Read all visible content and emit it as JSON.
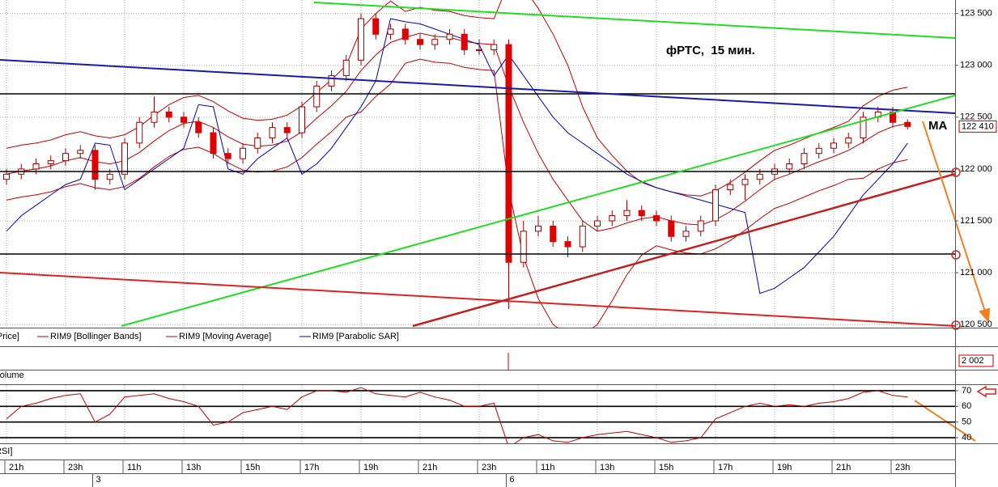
{
  "chart_data": [
    {
      "type": "candlestick",
      "categories": [
        "21h",
        null,
        null,
        null,
        "23h",
        null,
        null,
        null,
        "11h",
        null,
        null,
        null,
        "13h",
        null,
        null,
        null,
        "15h",
        null,
        null,
        null,
        "17h",
        null,
        null,
        null,
        "19h",
        null,
        null,
        null,
        "21h",
        null,
        null,
        null,
        "23h",
        null,
        null,
        null,
        "11h",
        null,
        null,
        null,
        "13h",
        null,
        null,
        null,
        "15h",
        null,
        null,
        null,
        "17h",
        null,
        null,
        null,
        "19h",
        null,
        null,
        null,
        "21h",
        null,
        null,
        null,
        "23h",
        null
      ],
      "day_labels": [
        "3",
        "6"
      ],
      "ylim": [
        120470,
        123630
      ],
      "yticks": [
        {
          "value": 120500,
          "label": "120 500"
        },
        {
          "value": 121000,
          "label": "121 000"
        },
        {
          "value": 121500,
          "label": "121 500"
        },
        {
          "value": 122000,
          "label": "122 000"
        },
        {
          "value": 122500,
          "label": "122 500"
        },
        {
          "value": 123000,
          "label": "123 000"
        },
        {
          "value": 123500,
          "label": "123 500"
        }
      ],
      "grid": true,
      "up_color": "#ffffff",
      "down_color": "#e00000",
      "edge_color": "#a00000",
      "price_label": "Price]",
      "last_value": 122410,
      "last_value_label": "122 410",
      "annotations": [
        "фРТС,  15 мин.",
        "МА"
      ],
      "ohlc": [
        [
          121900,
          122000,
          121850,
          121950
        ],
        [
          121950,
          122050,
          121900,
          122000
        ],
        [
          122000,
          122100,
          121950,
          122050
        ],
        [
          122050,
          122130,
          122000,
          122080
        ],
        [
          122080,
          122200,
          122030,
          122150
        ],
        [
          122150,
          122230,
          122100,
          122180
        ],
        [
          122180,
          122230,
          121800,
          121900
        ],
        [
          121900,
          122000,
          121850,
          121950
        ],
        [
          121950,
          122300,
          121900,
          122250
        ],
        [
          122250,
          122500,
          122200,
          122450
        ],
        [
          122450,
          122700,
          122400,
          122550
        ],
        [
          122550,
          122600,
          122450,
          122500
        ],
        [
          122500,
          122550,
          122400,
          122450
        ],
        [
          122450,
          122500,
          122300,
          122350
        ],
        [
          122350,
          122400,
          122100,
          122150
        ],
        [
          122150,
          122200,
          122050,
          122100
        ],
        [
          122100,
          122250,
          122050,
          122200
        ],
        [
          122200,
          122350,
          122150,
          122300
        ],
        [
          122300,
          122450,
          122250,
          122400
        ],
        [
          122400,
          122450,
          122300,
          122350
        ],
        [
          122350,
          122650,
          122300,
          122600
        ],
        [
          122600,
          122850,
          122550,
          122800
        ],
        [
          122800,
          122950,
          122750,
          122900
        ],
        [
          122900,
          123100,
          122850,
          123050
        ],
        [
          123050,
          123500,
          123000,
          123450
        ],
        [
          123450,
          123500,
          123250,
          123300
        ],
        [
          123300,
          123400,
          123250,
          123350
        ],
        [
          123350,
          123400,
          123200,
          123250
        ],
        [
          123250,
          123300,
          123150,
          123200
        ],
        [
          123200,
          123300,
          123150,
          123250
        ],
        [
          123250,
          123350,
          123200,
          123300
        ],
        [
          123300,
          123350,
          123100,
          123150
        ],
        [
          123150,
          123250,
          123100,
          123150
        ],
        [
          123150,
          123250,
          123100,
          123200
        ],
        [
          123200,
          123250,
          120650,
          121100
        ],
        [
          121100,
          121500,
          121050,
          121400
        ],
        [
          121400,
          121550,
          121350,
          121450
        ],
        [
          121450,
          121500,
          121250,
          121300
        ],
        [
          121300,
          121350,
          121150,
          121250
        ],
        [
          121250,
          121500,
          121200,
          121450
        ],
        [
          121450,
          121550,
          121400,
          121500
        ],
        [
          121500,
          121600,
          121450,
          121550
        ],
        [
          121550,
          121700,
          121500,
          121600
        ],
        [
          121600,
          121650,
          121500,
          121550
        ],
        [
          121550,
          121600,
          121450,
          121500
        ],
        [
          121500,
          121550,
          121300,
          121350
        ],
        [
          121350,
          121450,
          121300,
          121400
        ],
        [
          121400,
          121550,
          121350,
          121500
        ],
        [
          121500,
          121850,
          121450,
          121800
        ],
        [
          121800,
          121900,
          121750,
          121850
        ],
        [
          121850,
          121950,
          121700,
          121900
        ],
        [
          121900,
          122000,
          121850,
          121950
        ],
        [
          121950,
          122050,
          121900,
          122000
        ],
        [
          122000,
          122100,
          121950,
          122050
        ],
        [
          122050,
          122200,
          122000,
          122150
        ],
        [
          122150,
          122250,
          122100,
          122200
        ],
        [
          122200,
          122300,
          122150,
          122250
        ],
        [
          122250,
          122350,
          122200,
          122300
        ],
        [
          122300,
          122550,
          122250,
          122500
        ],
        [
          122500,
          122600,
          122450,
          122550
        ],
        [
          122550,
          122600,
          122400,
          122450
        ],
        [
          122450,
          122480,
          122380,
          122410
        ]
      ],
      "series": [
        {
          "name": "RIM9 [Bollinger Bands]",
          "color": "#c00000",
          "upper": [
            122200,
            122230,
            122250,
            122280,
            122330,
            122360,
            122320,
            122300,
            122330,
            122410,
            122520,
            122620,
            122690,
            122710,
            122650,
            122560,
            122490,
            122470,
            122480,
            122520,
            122610,
            122740,
            122860,
            123000,
            123350,
            123500,
            123620,
            123520,
            123560,
            123530,
            123520,
            123480,
            123460,
            123450,
            123800,
            123750,
            123550,
            123300,
            123000,
            122600,
            122300,
            122130,
            121980,
            121870,
            121820,
            121780,
            121750,
            121740,
            121790,
            121870,
            121970,
            122080,
            122180,
            122230,
            122290,
            122350,
            122400,
            122460,
            122610,
            122700,
            122760,
            122790
          ],
          "lower": [
            121700,
            121730,
            121750,
            121780,
            121830,
            121860,
            121820,
            121800,
            121830,
            121910,
            122020,
            122120,
            122190,
            122210,
            122150,
            122060,
            121990,
            121970,
            121980,
            122020,
            122110,
            122240,
            122360,
            122500,
            122550,
            122700,
            122820,
            123020,
            123060,
            123030,
            123020,
            122980,
            122960,
            122950,
            121800,
            121150,
            120750,
            120500,
            120400,
            120400,
            120500,
            120730,
            120980,
            121170,
            121260,
            121220,
            121190,
            121180,
            121230,
            121310,
            121410,
            121520,
            121620,
            121670,
            121730,
            121790,
            121840,
            121900,
            121910,
            122000,
            122060,
            122090
          ]
        },
        {
          "name": "RIM9 [Moving Average]",
          "color": "#c00000",
          "values": [
            121950,
            121980,
            122000,
            122030,
            122080,
            122110,
            122070,
            122050,
            122080,
            122160,
            122270,
            122370,
            122440,
            122460,
            122400,
            122310,
            122240,
            122220,
            122230,
            122270,
            122360,
            122490,
            122610,
            122750,
            122950,
            123100,
            123220,
            123270,
            123310,
            123280,
            123270,
            123230,
            123210,
            123200,
            122800,
            122450,
            122150,
            121900,
            121700,
            121500,
            121400,
            121430,
            121480,
            121520,
            121540,
            121500,
            121470,
            121460,
            121510,
            121590,
            121690,
            121800,
            121900,
            121950,
            122010,
            122070,
            122120,
            122180,
            122260,
            122350,
            122410,
            122440
          ]
        },
        {
          "name": "RIM9 [Parabolic SAR]",
          "color": "#0000c0",
          "values": [
            121400,
            121550,
            121650,
            121750,
            121850,
            121900,
            122250,
            122230,
            121800,
            121900,
            122000,
            122100,
            122200,
            122620,
            122600,
            122000,
            121950,
            122100,
            122200,
            122300,
            121950,
            122050,
            122200,
            122400,
            122600,
            122850,
            123450,
            123420,
            123400,
            123350,
            123300,
            123250,
            123200,
            122900,
            123100,
            122900,
            122700,
            122500,
            122350,
            122250,
            122150,
            122050,
            121950,
            121880,
            121820,
            121780,
            121740,
            121700,
            121660,
            121620,
            121580,
            120800,
            120850,
            120950,
            121050,
            121200,
            121350,
            121550,
            121750,
            121900,
            122050,
            122250
          ]
        }
      ]
    },
    {
      "type": "volume",
      "title": "Volume",
      "last_value": 2002,
      "last_value_label": "2 002"
    },
    {
      "type": "line",
      "title": "RSI]",
      "color": "#c00000",
      "ylim": [
        36.4,
        73.6
      ],
      "yticks": [
        70,
        60,
        50,
        40
      ],
      "values": [
        52,
        60,
        62,
        65,
        67,
        68,
        50,
        55,
        66,
        67,
        68,
        65,
        63,
        60,
        48,
        50,
        56,
        58,
        60,
        58,
        66,
        70,
        70,
        69,
        72,
        68,
        67,
        66,
        69,
        66,
        64,
        60,
        60,
        62,
        34,
        40,
        42,
        38,
        37,
        40,
        42,
        43,
        44,
        42,
        40,
        37,
        38,
        40,
        52,
        56,
        60,
        62,
        60,
        61,
        60,
        62,
        63,
        65,
        69,
        70,
        67,
        66
      ]
    }
  ]
}
